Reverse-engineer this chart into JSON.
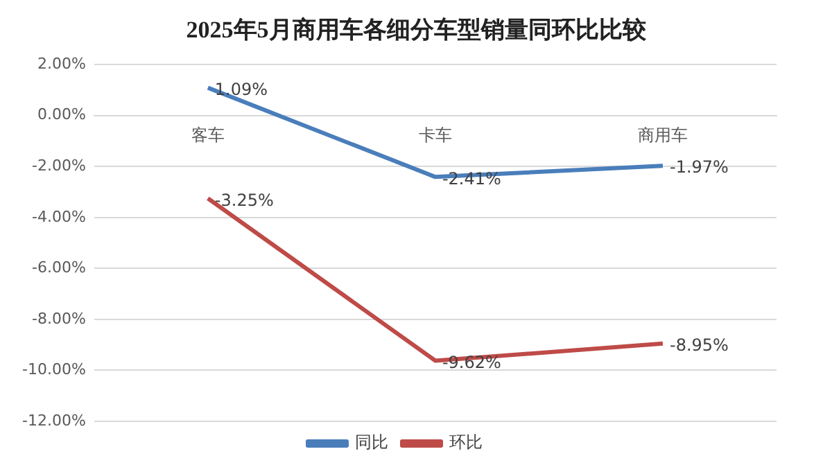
{
  "chart_data": {
    "type": "line",
    "title": "2025年5月商用车各细分车型销量同环比比较",
    "categories": [
      "客车",
      "卡车",
      "商用车"
    ],
    "series": [
      {
        "name": "同比",
        "color": "#4a7ebb",
        "values": [
          1.09,
          -2.41,
          -1.97
        ],
        "value_labels": [
          "1.09%",
          "-2.41%",
          "-1.97%"
        ]
      },
      {
        "name": "环比",
        "color": "#be4b48",
        "values": [
          -3.25,
          -9.62,
          -8.95
        ],
        "value_labels": [
          "-3.25%",
          "-9.62%",
          "-8.95%"
        ]
      }
    ],
    "ylim": [
      -12,
      2
    ],
    "yticks": [
      {
        "value": -12,
        "label": "-12.00%"
      },
      {
        "value": -10,
        "label": "-10.00%"
      },
      {
        "value": -8,
        "label": "-8.00%"
      },
      {
        "value": -6,
        "label": "-6.00%"
      },
      {
        "value": -4,
        "label": "-4.00%"
      },
      {
        "value": -2,
        "label": "-2.00%"
      },
      {
        "value": 0,
        "label": "0.00%"
      },
      {
        "value": 2,
        "label": "2.00%"
      }
    ],
    "grid": "y",
    "legend": "bottom",
    "marker": "none",
    "line_style": "solid"
  }
}
